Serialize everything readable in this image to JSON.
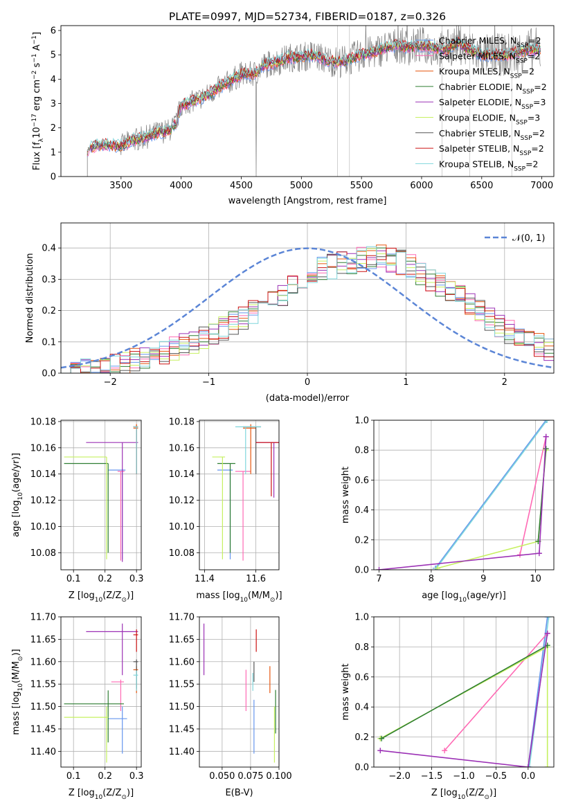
{
  "colors": {
    "chabrier_miles": "#6495ed",
    "salpeter_miles": "#ff69b4",
    "kroupa_miles": "#e6550d",
    "chabrier_elodie": "#2e7d32",
    "salpeter_elodie": "#9b30b5",
    "kroupa_elodie": "#c6f060",
    "chabrier_stelib": "#555555",
    "salpeter_stelib": "#cc1111",
    "kroupa_stelib": "#7fd6dc",
    "data_gray": "#7f7f7f",
    "gauss": "#5b85d6"
  },
  "chart_data": [
    {
      "id": "spectrum",
      "type": "line",
      "title": "PLATE=0997, MJD=52734, FIBERID=0187, z=0.326",
      "xlabel": "wavelength [Angstrom, rest frame]",
      "ylabel": "Flux [f",
      "ylabel_sub": "λ",
      "ylabel_rest": "10",
      "ylabel_sup1": "−17",
      "ylabel_rest2": " erg cm",
      "ylabel_sup2": "−2",
      "ylabel_rest3": " s",
      "ylabel_sup3": "−1",
      "ylabel_rest4": " A",
      "ylabel_sup4": "−1",
      "ylabel_end": "]",
      "xlim": [
        3000,
        7100
      ],
      "ylim": [
        0,
        6.2
      ],
      "xticks": [
        3500,
        4000,
        4500,
        5000,
        5500,
        6000,
        6500,
        7000
      ],
      "yticks": [
        0,
        1,
        2,
        3,
        4,
        5,
        6
      ],
      "legend_position": "top-right",
      "continuum": {
        "x": [
          3220,
          3300,
          3400,
          3500,
          3600,
          3700,
          3800,
          3900,
          3950,
          4000,
          4100,
          4200,
          4300,
          4400,
          4500,
          4600,
          4700,
          4800,
          4900,
          5000,
          5100,
          5200,
          5300,
          5400,
          5500,
          5600,
          5700,
          5800,
          5900,
          6000,
          6100,
          6200,
          6300,
          6400,
          6500,
          6600,
          6700,
          6800,
          6900
        ],
        "y": [
          1.1,
          1.3,
          1.3,
          1.25,
          1.5,
          1.6,
          1.8,
          1.9,
          2.1,
          2.9,
          3.1,
          3.3,
          3.6,
          3.9,
          4.2,
          4.2,
          4.6,
          4.7,
          4.9,
          4.9,
          5.0,
          4.8,
          4.7,
          4.8,
          5.0,
          5.1,
          5.3,
          5.4,
          5.3,
          5.4,
          5.3,
          5.2,
          5.5,
          5.2,
          5.0,
          5.0,
          5.0,
          5.1,
          5.2
        ]
      },
      "series": [
        {
          "name": "Chabrier MILES",
          "nssp": "2",
          "color_key": "chabrier_miles"
        },
        {
          "name": "Salpeter MILES",
          "nssp": "2",
          "color_key": "salpeter_miles"
        },
        {
          "name": "Kroupa MILES",
          "nssp": "2",
          "color_key": "kroupa_miles"
        },
        {
          "name": "Chabrier ELODIE",
          "nssp": "2",
          "color_key": "chabrier_elodie"
        },
        {
          "name": "Salpeter ELODIE",
          "nssp": "3",
          "color_key": "salpeter_elodie"
        },
        {
          "name": "Kroupa ELODIE",
          "nssp": "3",
          "color_key": "kroupa_elodie"
        },
        {
          "name": "Chabrier STELIB",
          "nssp": "2",
          "color_key": "chabrier_stelib"
        },
        {
          "name": "Salpeter STELIB",
          "nssp": "2",
          "color_key": "salpeter_stelib"
        },
        {
          "name": "Kroupa STELIB",
          "nssp": "2",
          "color_key": "kroupa_stelib"
        }
      ],
      "legend_sub": "SSP",
      "legend_prefix": "N"
    },
    {
      "id": "residuals",
      "type": "line",
      "xlabel": "(data-model)/error",
      "ylabel": "Normed distribution",
      "xlim": [
        -2.5,
        2.5
      ],
      "ylim": [
        0,
        0.48
      ],
      "xticks": [
        -2,
        -1,
        0,
        1,
        2
      ],
      "yticks": [
        0.0,
        0.1,
        0.2,
        0.3,
        0.4
      ],
      "gauss_label": "𝒩(0, 1)",
      "legend_position": "top-right",
      "hist_envelope": {
        "x": [
          -2.5,
          -2.0,
          -1.5,
          -1.0,
          -0.5,
          -0.25,
          0.0,
          0.25,
          0.5,
          0.75,
          1.0,
          1.25,
          1.5,
          1.75,
          2.0,
          2.25,
          2.5
        ],
        "y": [
          0.01,
          0.02,
          0.06,
          0.12,
          0.2,
          0.25,
          0.32,
          0.34,
          0.36,
          0.37,
          0.35,
          0.3,
          0.25,
          0.2,
          0.14,
          0.1,
          0.07
        ]
      }
    },
    {
      "id": "age_vs_Z",
      "type": "scatter",
      "xlabel": "Z [log",
      "xlabel_sub": "10",
      "xlabel_rest": "(Z/Z",
      "xlabel_sub2": "⊙",
      "xlabel_end": ")]",
      "ylabel": "age  [log",
      "ylabel_sub": "10",
      "ylabel_rest": "(age/yr)]",
      "xlim": [
        0.06,
        0.315
      ],
      "ylim": [
        10.067,
        10.181
      ],
      "xticks": [
        0.1,
        0.2,
        0.3
      ],
      "yticks": [
        10.08,
        10.1,
        10.12,
        10.14,
        10.16,
        10.18
      ],
      "points": [
        {
          "x": 0.255,
          "y": 10.143,
          "xerr": [
            0.21,
            0.265
          ],
          "yerr": [
            10.075,
            10.144
          ],
          "color_key": "chabrier_miles"
        },
        {
          "x": 0.25,
          "y": 10.142,
          "xerr": [
            0.24,
            0.262
          ],
          "yerr": [
            10.074,
            10.142
          ],
          "color_key": "salpeter_miles"
        },
        {
          "x": 0.3,
          "y": 10.175,
          "xerr": [
            0.29,
            0.305
          ],
          "yerr": [
            10.14,
            10.178
          ],
          "color_key": "kroupa_miles"
        },
        {
          "x": 0.21,
          "y": 10.148,
          "xerr": [
            0.07,
            0.21
          ],
          "yerr": [
            10.08,
            10.148
          ],
          "color_key": "chabrier_elodie"
        },
        {
          "x": 0.255,
          "y": 10.164,
          "xerr": [
            0.14,
            0.305
          ],
          "yerr": [
            10.073,
            10.164
          ],
          "color_key": "salpeter_elodie"
        },
        {
          "x": 0.205,
          "y": 10.153,
          "xerr": [
            0.07,
            0.205
          ],
          "yerr": [
            10.075,
            10.153
          ],
          "color_key": "kroupa_elodie"
        },
        {
          "x": 0.3,
          "y": 10.176,
          "xerr": [
            0.29,
            0.305
          ],
          "yerr": [
            10.14,
            10.176
          ],
          "color_key": "chabrier_stelib"
        },
        {
          "x": 0.3,
          "y": 10.176,
          "xerr": [
            0.29,
            0.305
          ],
          "yerr": [
            10.14,
            10.176
          ],
          "color_key": "salpeter_stelib"
        },
        {
          "x": 0.3,
          "y": 10.176,
          "xerr": [
            0.29,
            0.305
          ],
          "yerr": [
            10.14,
            10.176
          ],
          "color_key": "kroupa_stelib"
        }
      ]
    },
    {
      "id": "age_vs_mass",
      "type": "scatter",
      "xlabel": "mass [log",
      "xlabel_sub": "10",
      "xlabel_rest": "(M/M",
      "xlabel_sub2": "⊙",
      "xlabel_end": ")]",
      "xlim": [
        11.38,
        11.69
      ],
      "ylim": [
        10.067,
        10.181
      ],
      "xticks": [
        11.4,
        11.6
      ],
      "yticks": [
        10.08,
        10.1,
        10.12,
        10.14,
        10.16,
        10.18
      ],
      "points": [
        {
          "x": 11.5,
          "y": 10.143,
          "xerr": [
            11.45,
            11.51
          ],
          "yerr": [
            10.075,
            10.144
          ],
          "color_key": "chabrier_miles"
        },
        {
          "x": 11.55,
          "y": 10.142,
          "xerr": [
            11.52,
            11.58
          ],
          "yerr": [
            10.074,
            10.142
          ],
          "color_key": "salpeter_miles"
        },
        {
          "x": 11.58,
          "y": 10.175,
          "xerr": [
            11.55,
            11.6
          ],
          "yerr": [
            10.14,
            10.178
          ],
          "color_key": "kroupa_miles"
        },
        {
          "x": 11.5,
          "y": 10.148,
          "xerr": [
            11.45,
            11.52
          ],
          "yerr": [
            10.08,
            10.148
          ],
          "color_key": "chabrier_elodie"
        },
        {
          "x": 11.67,
          "y": 10.164,
          "xerr": [
            11.6,
            11.7
          ],
          "yerr": [
            10.122,
            10.164
          ],
          "color_key": "salpeter_elodie"
        },
        {
          "x": 11.47,
          "y": 10.153,
          "xerr": [
            11.43,
            11.48
          ],
          "yerr": [
            10.075,
            10.153
          ],
          "color_key": "kroupa_elodie"
        },
        {
          "x": 11.6,
          "y": 10.176,
          "xerr": [
            11.55,
            11.62
          ],
          "yerr": [
            10.14,
            10.176
          ],
          "color_key": "chabrier_stelib"
        },
        {
          "x": 11.66,
          "y": 10.164,
          "xerr": [
            11.6,
            11.69
          ],
          "yerr": [
            10.123,
            10.164
          ],
          "color_key": "salpeter_stelib"
        },
        {
          "x": 11.56,
          "y": 10.176,
          "xerr": [
            11.52,
            11.62
          ],
          "yerr": [
            10.14,
            10.176
          ],
          "color_key": "kroupa_stelib"
        }
      ]
    },
    {
      "id": "weight_vs_age",
      "type": "line",
      "xlabel": "age  [log",
      "xlabel_sub": "10",
      "xlabel_rest": "(age/yr)]",
      "ylabel": "mass weight",
      "xlim": [
        6.9,
        10.35
      ],
      "ylim": [
        0,
        1
      ],
      "xticks": [
        7,
        8,
        9,
        10
      ],
      "yticks": [
        0.0,
        0.2,
        0.4,
        0.6,
        0.8,
        1.0
      ],
      "series": [
        {
          "color_key": "chabrier_miles",
          "x": [
            8.08,
            10.2
          ],
          "y": [
            0.01,
            1.0
          ]
        },
        {
          "color_key": "kroupa_stelib",
          "x": [
            8.1,
            10.22
          ],
          "y": [
            0.01,
            1.0
          ]
        },
        {
          "color_key": "salpeter_miles",
          "x": [
            9.7,
            10.2
          ],
          "y": [
            0.1,
            0.89
          ]
        },
        {
          "color_key": "kroupa_elodie",
          "x": [
            8.12,
            10.05,
            10.2
          ],
          "y": [
            0.01,
            0.19,
            0.8
          ]
        },
        {
          "color_key": "chabrier_elodie",
          "x": [
            10.05,
            10.2
          ],
          "y": [
            0.19,
            0.81
          ]
        },
        {
          "color_key": "salpeter_elodie",
          "x": [
            7.0,
            10.07,
            10.2
          ],
          "y": [
            0.0,
            0.11,
            0.89
          ]
        }
      ]
    },
    {
      "id": "mass_vs_Z",
      "type": "scatter",
      "xlabel": "Z [log",
      "xlabel_sub": "10",
      "xlabel_rest": "(Z/Z",
      "xlabel_sub2": "⊙",
      "xlabel_end": ")]",
      "ylabel": "mass [log",
      "ylabel_sub": "10",
      "ylabel_rest": "(M/M",
      "ylabel_sub2": "⊙",
      "ylabel_end": ")]",
      "xlim": [
        0.06,
        0.315
      ],
      "ylim": [
        11.365,
        11.7
      ],
      "xticks": [
        0.1,
        0.2,
        0.3
      ],
      "yticks": [
        11.4,
        11.45,
        11.5,
        11.55,
        11.6,
        11.65,
        11.7
      ],
      "points": [
        {
          "x": 0.255,
          "y": 11.473,
          "xerr": [
            0.21,
            0.27
          ],
          "yerr": [
            11.395,
            11.5
          ],
          "color_key": "chabrier_miles"
        },
        {
          "x": 0.25,
          "y": 11.555,
          "xerr": [
            0.22,
            0.26
          ],
          "yerr": [
            11.49,
            11.56
          ],
          "color_key": "salpeter_miles"
        },
        {
          "x": 0.3,
          "y": 11.582,
          "xerr": [
            0.29,
            0.305
          ],
          "yerr": [
            11.53,
            11.59
          ],
          "color_key": "kroupa_miles"
        },
        {
          "x": 0.21,
          "y": 11.506,
          "xerr": [
            0.07,
            0.26
          ],
          "yerr": [
            11.42,
            11.536
          ],
          "color_key": "chabrier_elodie"
        },
        {
          "x": 0.255,
          "y": 11.667,
          "xerr": [
            0.14,
            0.305
          ],
          "yerr": [
            11.57,
            11.685
          ],
          "color_key": "salpeter_elodie"
        },
        {
          "x": 0.205,
          "y": 11.476,
          "xerr": [
            0.07,
            0.21
          ],
          "yerr": [
            11.375,
            11.5
          ],
          "color_key": "kroupa_elodie"
        },
        {
          "x": 0.3,
          "y": 11.6,
          "xerr": [
            0.29,
            0.305
          ],
          "yerr": [
            11.54,
            11.605
          ],
          "color_key": "chabrier_stelib"
        },
        {
          "x": 0.3,
          "y": 11.66,
          "xerr": [
            0.29,
            0.305
          ],
          "yerr": [
            11.622,
            11.672
          ],
          "color_key": "salpeter_stelib"
        },
        {
          "x": 0.3,
          "y": 11.57,
          "xerr": [
            0.29,
            0.305
          ],
          "yerr": [
            11.535,
            11.58
          ],
          "color_key": "kroupa_stelib"
        }
      ]
    },
    {
      "id": "mass_vs_ebv",
      "type": "scatter",
      "xlabel": "E(B-V)",
      "xlim": [
        0.03,
        0.1
      ],
      "ylim": [
        11.365,
        11.7
      ],
      "xticks": [
        0.05,
        0.075,
        0.1
      ],
      "xtick_labels": [
        "0.050",
        "0.075",
        "0.100"
      ],
      "yticks": [
        11.4,
        11.45,
        11.5,
        11.55,
        11.6,
        11.65,
        11.7
      ],
      "points": [
        {
          "x": 0.078,
          "y": 11.473,
          "yerr": [
            11.395,
            11.515
          ],
          "color_key": "chabrier_miles"
        },
        {
          "x": 0.071,
          "y": 11.555,
          "yerr": [
            11.49,
            11.582
          ],
          "color_key": "salpeter_miles"
        },
        {
          "x": 0.092,
          "y": 11.582,
          "yerr": [
            11.53,
            11.59
          ],
          "color_key": "kroupa_miles"
        },
        {
          "x": 0.097,
          "y": 11.506,
          "yerr": [
            11.44,
            11.537
          ],
          "color_key": "chabrier_elodie"
        },
        {
          "x": 0.034,
          "y": 11.667,
          "yerr": [
            11.57,
            11.685
          ],
          "color_key": "salpeter_elodie"
        },
        {
          "x": 0.096,
          "y": 11.476,
          "yerr": [
            11.375,
            11.5
          ],
          "color_key": "kroupa_elodie"
        },
        {
          "x": 0.078,
          "y": 11.6,
          "yerr": [
            11.555,
            11.6
          ],
          "color_key": "chabrier_stelib"
        },
        {
          "x": 0.08,
          "y": 11.66,
          "yerr": [
            11.622,
            11.672
          ],
          "color_key": "salpeter_stelib"
        },
        {
          "x": 0.077,
          "y": 11.57,
          "yerr": [
            11.535,
            11.575
          ],
          "color_key": "kroupa_stelib"
        }
      ]
    },
    {
      "id": "weight_vs_Z",
      "type": "line",
      "xlabel": "Z [log",
      "xlabel_sub": "10",
      "xlabel_rest": "(Z/Z",
      "xlabel_sub2": "⊙",
      "xlabel_end": ")]",
      "ylabel": "mass weight",
      "xlim": [
        -2.4,
        0.4
      ],
      "ylim": [
        0,
        1
      ],
      "xticks": [
        -2.0,
        -1.5,
        -1.0,
        -0.5,
        0.0
      ],
      "xtick_labels": [
        "−2.0",
        "−1.5",
        "−1.0",
        "−0.5",
        "0.0"
      ],
      "yticks": [
        0.0,
        0.2,
        0.4,
        0.6,
        0.8,
        1.0
      ],
      "series": [
        {
          "color_key": "chabrier_miles",
          "x": [
            0.0,
            0.3
          ],
          "y": [
            0.0,
            1.0
          ]
        },
        {
          "color_key": "kroupa_stelib",
          "x": [
            0.02,
            0.32
          ],
          "y": [
            0.0,
            1.0
          ]
        },
        {
          "color_key": "salpeter_miles",
          "x": [
            -1.3,
            0.3
          ],
          "y": [
            0.11,
            0.89
          ]
        },
        {
          "color_key": "kroupa_elodie",
          "x": [
            -2.3,
            0.3,
            0.3
          ],
          "y": [
            0.19,
            0.8,
            0.0
          ]
        },
        {
          "color_key": "chabrier_elodie",
          "x": [
            -2.28,
            0.3
          ],
          "y": [
            0.19,
            0.81
          ]
        },
        {
          "color_key": "salpeter_elodie",
          "x": [
            -2.3,
            0.0,
            0.3
          ],
          "y": [
            0.11,
            0.0,
            0.89
          ]
        }
      ]
    }
  ]
}
